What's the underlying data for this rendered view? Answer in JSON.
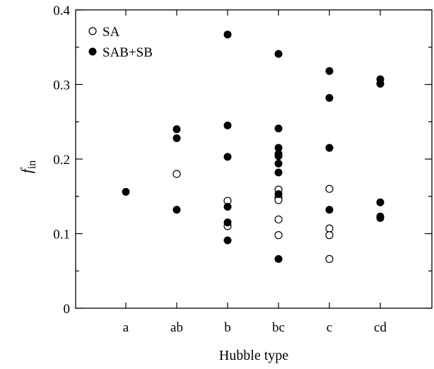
{
  "chart_data": {
    "type": "scatter",
    "title": "",
    "xlabel": "Hubble type",
    "ylabel": {
      "main": "f",
      "subscript": "in"
    },
    "categories": [
      "a",
      "ab",
      "b",
      "bc",
      "c",
      "cd"
    ],
    "ylim": [
      0,
      0.4
    ],
    "yticks": [
      "0",
      "0.1",
      "0.2",
      "0.3",
      "0.4"
    ],
    "grid": false,
    "legend_position": "top-left",
    "series": [
      {
        "name": "SA",
        "marker": "open-circle",
        "color": "#000000",
        "points": [
          {
            "x": "ab",
            "y": 0.18
          },
          {
            "x": "b",
            "y": 0.144
          },
          {
            "x": "b",
            "y": 0.11
          },
          {
            "x": "bc",
            "y": 0.159
          },
          {
            "x": "bc",
            "y": 0.148
          },
          {
            "x": "bc",
            "y": 0.145
          },
          {
            "x": "bc",
            "y": 0.119
          },
          {
            "x": "bc",
            "y": 0.098
          },
          {
            "x": "c",
            "y": 0.16
          },
          {
            "x": "c",
            "y": 0.107
          },
          {
            "x": "c",
            "y": 0.098
          },
          {
            "x": "c",
            "y": 0.066
          }
        ]
      },
      {
        "name": "SAB+SB",
        "marker": "filled-circle",
        "color": "#000000",
        "points": [
          {
            "x": "a",
            "y": 0.156
          },
          {
            "x": "ab",
            "y": 0.24
          },
          {
            "x": "ab",
            "y": 0.228
          },
          {
            "x": "ab",
            "y": 0.132
          },
          {
            "x": "b",
            "y": 0.367
          },
          {
            "x": "b",
            "y": 0.245
          },
          {
            "x": "b",
            "y": 0.203
          },
          {
            "x": "b",
            "y": 0.136
          },
          {
            "x": "b",
            "y": 0.115
          },
          {
            "x": "b",
            "y": 0.091
          },
          {
            "x": "bc",
            "y": 0.341
          },
          {
            "x": "bc",
            "y": 0.241
          },
          {
            "x": "bc",
            "y": 0.215
          },
          {
            "x": "bc",
            "y": 0.207
          },
          {
            "x": "bc",
            "y": 0.204
          },
          {
            "x": "bc",
            "y": 0.194
          },
          {
            "x": "bc",
            "y": 0.182
          },
          {
            "x": "bc",
            "y": 0.153
          },
          {
            "x": "bc",
            "y": 0.066
          },
          {
            "x": "c",
            "y": 0.318
          },
          {
            "x": "c",
            "y": 0.282
          },
          {
            "x": "c",
            "y": 0.215
          },
          {
            "x": "c",
            "y": 0.132
          },
          {
            "x": "cd",
            "y": 0.307
          },
          {
            "x": "cd",
            "y": 0.301
          },
          {
            "x": "cd",
            "y": 0.142
          },
          {
            "x": "cd",
            "y": 0.123
          },
          {
            "x": "cd",
            "y": 0.121
          }
        ]
      }
    ]
  }
}
